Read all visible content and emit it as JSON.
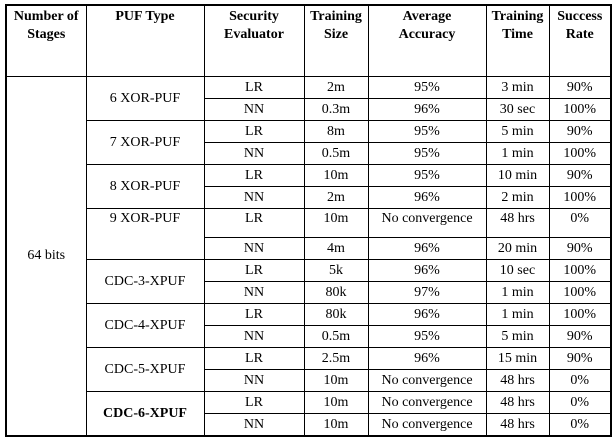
{
  "table": {
    "headers": [
      [
        "Number of",
        "Stages"
      ],
      [
        "PUF Type"
      ],
      [
        "Security",
        "Evaluator"
      ],
      [
        "Training",
        "Size"
      ],
      [
        "Average",
        "Accuracy"
      ],
      [
        "Training",
        "Time"
      ],
      [
        "Success",
        "Rate"
      ]
    ],
    "stages_label": "64 bits",
    "groups": [
      {
        "puf_type": "6 XOR-PUF",
        "bold": false,
        "rows": [
          {
            "evaluator": "LR",
            "training_size": "2m",
            "avg_accuracy": "95%",
            "training_time": "3 min",
            "success_rate": "90%"
          },
          {
            "evaluator": "NN",
            "training_size": "0.3m",
            "avg_accuracy": "96%",
            "training_time": "30 sec",
            "success_rate": "100%"
          }
        ]
      },
      {
        "puf_type": "7 XOR-PUF",
        "bold": false,
        "rows": [
          {
            "evaluator": "LR",
            "training_size": "8m",
            "avg_accuracy": "95%",
            "training_time": "5 min",
            "success_rate": "90%"
          },
          {
            "evaluator": "NN",
            "training_size": "0.5m",
            "avg_accuracy": "95%",
            "training_time": "1 min",
            "success_rate": "100%"
          }
        ]
      },
      {
        "puf_type": "8 XOR-PUF",
        "bold": false,
        "rows": [
          {
            "evaluator": "LR",
            "training_size": "10m",
            "avg_accuracy": "95%",
            "training_time": "10 min",
            "success_rate": "90%"
          },
          {
            "evaluator": "NN",
            "training_size": "2m",
            "avg_accuracy": "96%",
            "training_time": "2 min",
            "success_rate": "100%"
          }
        ]
      },
      {
        "puf_type": "9 XOR-PUF",
        "bold": false,
        "rows": [
          {
            "evaluator": "LR",
            "training_size": "10m",
            "avg_accuracy": "No convergence",
            "training_time": "48 hrs",
            "success_rate": "0%",
            "tall": true
          },
          {
            "evaluator": "NN",
            "training_size": "4m",
            "avg_accuracy": "96%",
            "training_time": "20 min",
            "success_rate": "90%"
          }
        ]
      },
      {
        "puf_type": "CDC-3-XPUF",
        "bold": false,
        "rows": [
          {
            "evaluator": "LR",
            "training_size": "5k",
            "avg_accuracy": "96%",
            "training_time": "10 sec",
            "success_rate": "100%"
          },
          {
            "evaluator": "NN",
            "training_size": "80k",
            "avg_accuracy": "97%",
            "training_time": "1 min",
            "success_rate": "100%"
          }
        ]
      },
      {
        "puf_type": "CDC-4-XPUF",
        "bold": false,
        "rows": [
          {
            "evaluator": "LR",
            "training_size": "80k",
            "avg_accuracy": "96%",
            "training_time": "1 min",
            "success_rate": "100%"
          },
          {
            "evaluator": "NN",
            "training_size": "0.5m",
            "avg_accuracy": "95%",
            "training_time": "5 min",
            "success_rate": "90%"
          }
        ]
      },
      {
        "puf_type": "CDC-5-XPUF",
        "bold": false,
        "rows": [
          {
            "evaluator": "LR",
            "training_size": "2.5m",
            "avg_accuracy": "96%",
            "training_time": "15 min",
            "success_rate": "90%"
          },
          {
            "evaluator": "NN",
            "training_size": "10m",
            "avg_accuracy": "No convergence",
            "training_time": "48 hrs",
            "success_rate": "0%"
          }
        ]
      },
      {
        "puf_type": "CDC-6-XPUF",
        "bold": true,
        "rows": [
          {
            "evaluator": "LR",
            "training_size": "10m",
            "avg_accuracy": "No convergence",
            "training_time": "48 hrs",
            "success_rate": "0%"
          },
          {
            "evaluator": "NN",
            "training_size": "10m",
            "avg_accuracy": "No convergence",
            "training_time": "48 hrs",
            "success_rate": "0%"
          }
        ]
      }
    ]
  }
}
